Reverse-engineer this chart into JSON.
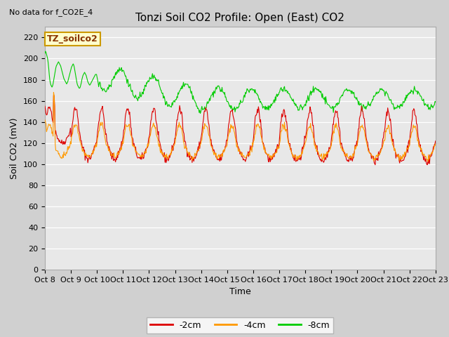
{
  "title": "Tonzi Soil CO2 Profile: Open (East) CO2",
  "subtitle": "No data for f_CO2E_4",
  "ylabel": "Soil CO2 (mV)",
  "xlabel": "Time",
  "ylim": [
    0,
    230
  ],
  "yticks": [
    0,
    20,
    40,
    60,
    80,
    100,
    120,
    140,
    160,
    180,
    200,
    220
  ],
  "xtick_labels": [
    "Oct 8",
    "Oct 9",
    "Oct 10",
    "Oct 11",
    "Oct 12",
    "Oct 13",
    "Oct 14",
    "Oct 15",
    "Oct 16",
    "Oct 17",
    "Oct 18",
    "Oct 19",
    "Oct 20",
    "Oct 21",
    "Oct 22",
    "Oct 23"
  ],
  "legend_entries": [
    "-2cm",
    "-4cm",
    "-8cm"
  ],
  "legend_colors": [
    "#dd0000",
    "#ff9900",
    "#00cc00"
  ],
  "color_2cm": "#dd0000",
  "color_4cm": "#ff9900",
  "color_8cm": "#00cc00",
  "inset_label": "TZ_soilco2",
  "inset_bg": "#ffffcc",
  "inset_border": "#cc9900",
  "fig_facecolor": "#d0d0d0",
  "ax_facecolor": "#e8e8e8",
  "grid_color": "#ffffff"
}
